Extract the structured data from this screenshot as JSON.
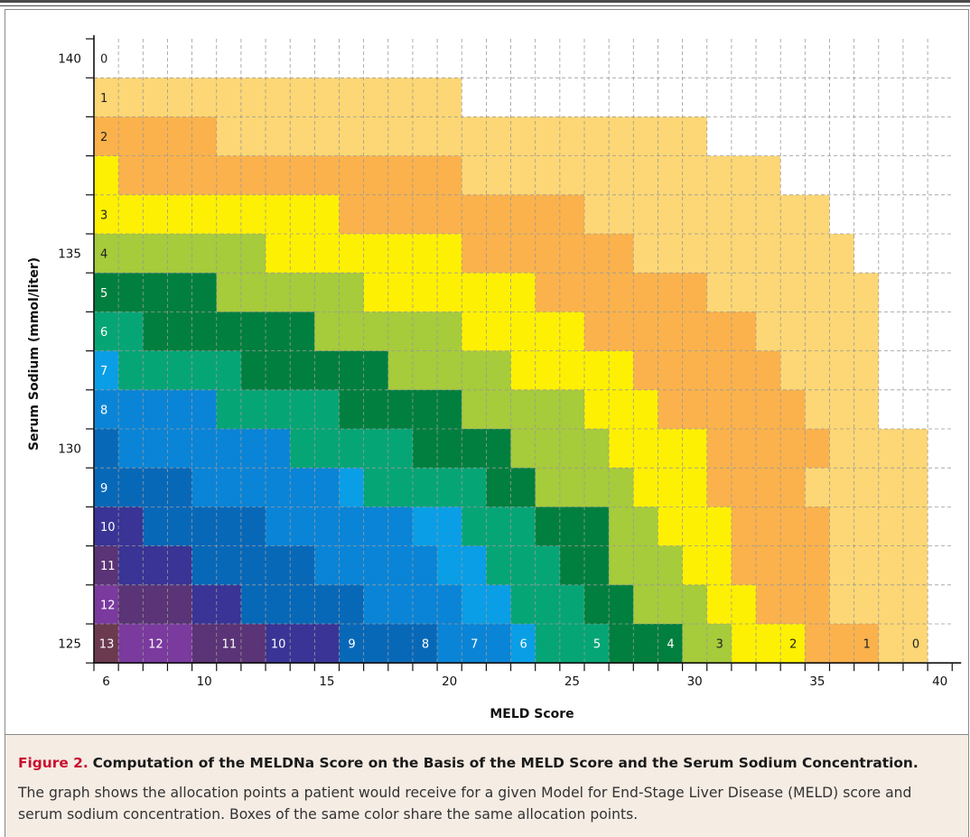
{
  "chart_data": {
    "type": "heatmap",
    "xlabel": "MELD Score",
    "ylabel": "Serum Sodium (mmol/liter)",
    "x_range": [
      6,
      40
    ],
    "y_range": [
      125,
      140
    ],
    "x_ticks": [
      6,
      10,
      15,
      20,
      25,
      30,
      35,
      40
    ],
    "y_ticks": [
      125,
      130,
      135,
      140
    ],
    "grid": true,
    "points_colors": {
      "0": "#ffffff",
      "1": "#fdd775",
      "2": "#fbb24c",
      "3": "#fef002",
      "4": "#a6cb3b",
      "5": "#007f3e",
      "6": "#06a575",
      "7": "#0a9ee6",
      "8": "#0a84d6",
      "9": "#0868b8",
      "10": "#3a3496",
      "11": "#5a3476",
      "12": "#7a3a9e",
      "13": "#6b3a4e"
    },
    "rows": [
      {
        "sodium": 140,
        "row_label": "0",
        "points": [
          0,
          0,
          0,
          0,
          0,
          0,
          0,
          0,
          0,
          0,
          0,
          0,
          0,
          0,
          0,
          0,
          0,
          0,
          0,
          0,
          0,
          0,
          0,
          0,
          0,
          0,
          0,
          0,
          0,
          0,
          0,
          0,
          0,
          0,
          0
        ]
      },
      {
        "sodium": 139,
        "row_label": "1",
        "points": [
          1,
          1,
          1,
          1,
          1,
          1,
          1,
          1,
          1,
          1,
          1,
          1,
          1,
          1,
          1,
          0,
          0,
          0,
          0,
          0,
          0,
          0,
          0,
          0,
          0,
          0,
          0,
          0,
          0,
          0,
          0,
          0,
          0,
          0,
          0
        ]
      },
      {
        "sodium": 138,
        "row_label": "2",
        "points": [
          2,
          2,
          2,
          2,
          2,
          1,
          1,
          1,
          1,
          1,
          1,
          1,
          1,
          1,
          1,
          1,
          1,
          1,
          1,
          1,
          1,
          1,
          1,
          1,
          1,
          0,
          0,
          0,
          0,
          0,
          0,
          0,
          0,
          0,
          0
        ]
      },
      {
        "sodium": 137,
        "row_label": "",
        "points": [
          3,
          2,
          2,
          2,
          2,
          2,
          2,
          2,
          2,
          2,
          2,
          2,
          2,
          2,
          2,
          1,
          1,
          1,
          1,
          1,
          1,
          1,
          1,
          1,
          1,
          1,
          1,
          1,
          0,
          0,
          0,
          0,
          0,
          0,
          0
        ]
      },
      {
        "sodium": 136,
        "row_label": "3",
        "points": [
          3,
          3,
          3,
          3,
          3,
          3,
          3,
          3,
          3,
          3,
          2,
          2,
          2,
          2,
          2,
          2,
          2,
          2,
          2,
          2,
          1,
          1,
          1,
          1,
          1,
          1,
          1,
          1,
          1,
          1,
          0,
          0,
          0,
          0,
          0
        ]
      },
      {
        "sodium": 135,
        "row_label": "4",
        "points": [
          4,
          4,
          4,
          4,
          4,
          4,
          4,
          3,
          3,
          3,
          3,
          3,
          3,
          3,
          3,
          2,
          2,
          2,
          2,
          2,
          2,
          2,
          1,
          1,
          1,
          1,
          1,
          1,
          1,
          1,
          1,
          0,
          0,
          0,
          0
        ]
      },
      {
        "sodium": 134,
        "row_label": "5",
        "points": [
          5,
          5,
          5,
          5,
          5,
          4,
          4,
          4,
          4,
          4,
          4,
          3,
          3,
          3,
          3,
          3,
          3,
          3,
          2,
          2,
          2,
          2,
          2,
          2,
          2,
          1,
          1,
          1,
          1,
          1,
          1,
          1,
          0,
          0,
          0
        ]
      },
      {
        "sodium": 133,
        "row_label": "6",
        "points": [
          6,
          6,
          5,
          5,
          5,
          5,
          5,
          5,
          5,
          4,
          4,
          4,
          4,
          4,
          4,
          3,
          3,
          3,
          3,
          3,
          2,
          2,
          2,
          2,
          2,
          2,
          2,
          1,
          1,
          1,
          1,
          1,
          0,
          0,
          0
        ]
      },
      {
        "sodium": 132,
        "row_label": "7",
        "points": [
          7,
          6,
          6,
          6,
          6,
          6,
          5,
          5,
          5,
          5,
          5,
          5,
          4,
          4,
          4,
          4,
          4,
          3,
          3,
          3,
          3,
          3,
          2,
          2,
          2,
          2,
          2,
          2,
          1,
          1,
          1,
          1,
          0,
          0,
          0
        ]
      },
      {
        "sodium": 131,
        "row_label": "8",
        "points": [
          8,
          8,
          8,
          8,
          8,
          6,
          6,
          6,
          6,
          6,
          5,
          5,
          5,
          5,
          5,
          4,
          4,
          4,
          4,
          4,
          3,
          3,
          3,
          2,
          2,
          2,
          2,
          2,
          2,
          1,
          1,
          1,
          0,
          0,
          0
        ]
      },
      {
        "sodium": 130,
        "row_label": "",
        "points": [
          9,
          8,
          8,
          8,
          8,
          8,
          8,
          8,
          6,
          6,
          6,
          6,
          6,
          5,
          5,
          5,
          5,
          4,
          4,
          4,
          4,
          3,
          3,
          3,
          3,
          2,
          2,
          2,
          2,
          2,
          1,
          1,
          1,
          1,
          0
        ]
      },
      {
        "sodium": 129,
        "row_label": "9",
        "points": [
          9,
          9,
          9,
          9,
          8,
          8,
          8,
          8,
          8,
          8,
          7,
          6,
          6,
          6,
          6,
          6,
          5,
          5,
          4,
          4,
          4,
          4,
          3,
          3,
          3,
          2,
          2,
          2,
          2,
          1,
          1,
          1,
          1,
          1,
          0
        ]
      },
      {
        "sodium": 128,
        "row_label": "10",
        "points": [
          10,
          10,
          9,
          9,
          9,
          9,
          9,
          8,
          8,
          8,
          8,
          8,
          8,
          7,
          7,
          6,
          6,
          6,
          5,
          5,
          5,
          4,
          4,
          3,
          3,
          3,
          2,
          2,
          2,
          2,
          1,
          1,
          1,
          1,
          0
        ]
      },
      {
        "sodium": 127,
        "row_label": "11",
        "points": [
          11,
          10,
          10,
          10,
          9,
          9,
          9,
          9,
          9,
          8,
          8,
          8,
          8,
          8,
          7,
          7,
          6,
          6,
          6,
          5,
          5,
          4,
          4,
          4,
          3,
          3,
          2,
          2,
          2,
          2,
          1,
          1,
          1,
          1,
          0
        ]
      },
      {
        "sodium": 126,
        "row_label": "12",
        "points": [
          12,
          11,
          11,
          11,
          10,
          10,
          9,
          9,
          9,
          9,
          9,
          8,
          8,
          8,
          8,
          7,
          7,
          6,
          6,
          6,
          5,
          5,
          4,
          4,
          4,
          3,
          3,
          2,
          2,
          2,
          1,
          1,
          1,
          1,
          0
        ]
      },
      {
        "sodium": 125,
        "row_label": "13",
        "points": [
          13,
          12,
          12,
          12,
          11,
          11,
          11,
          10,
          10,
          10,
          9,
          9,
          9,
          9,
          8,
          8,
          8,
          7,
          6,
          6,
          6,
          5,
          5,
          5,
          4,
          4,
          3,
          3,
          3,
          2,
          2,
          2,
          1,
          1,
          0
        ]
      }
    ],
    "bottom_row_labels": [
      {
        "meld": 6,
        "label": "13"
      },
      {
        "meld": 8,
        "label": "12"
      },
      {
        "meld": 11,
        "label": "11"
      },
      {
        "meld": 13,
        "label": "10"
      },
      {
        "meld": 16,
        "label": "9"
      },
      {
        "meld": 19,
        "label": "8"
      },
      {
        "meld": 21,
        "label": "7"
      },
      {
        "meld": 23,
        "label": "6"
      },
      {
        "meld": 26,
        "label": "5"
      },
      {
        "meld": 29,
        "label": "4"
      },
      {
        "meld": 31,
        "label": "3"
      },
      {
        "meld": 34,
        "label": "2"
      },
      {
        "meld": 37,
        "label": "1"
      },
      {
        "meld": 39,
        "label": "0"
      }
    ]
  },
  "caption": {
    "label": "Figure 2.",
    "heading": "Computation of the MELDNa Score on the Basis of the MELD Score and the Serum Sodium Concentration.",
    "body": "The graph shows the allocation points a patient would receive for a given Model for End-Stage Liver Disease (MELD) score and serum sodium concentration. Boxes of the same color share the same allocation points."
  }
}
